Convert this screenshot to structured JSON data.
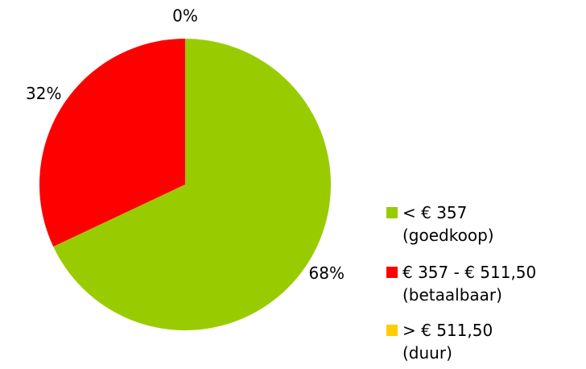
{
  "chart_data": {
    "type": "pie",
    "categories": [
      "< € 357\n(goedkoop)",
      "€ 357 - € 511,50\n(betaalbaar)",
      "> € 511,50\n(duur)"
    ],
    "values": [
      68,
      32,
      0
    ],
    "value_labels": [
      "68%",
      "32%",
      "0%"
    ],
    "colors": [
      "#99cc00",
      "#ff0000",
      "#ffcc00"
    ]
  }
}
